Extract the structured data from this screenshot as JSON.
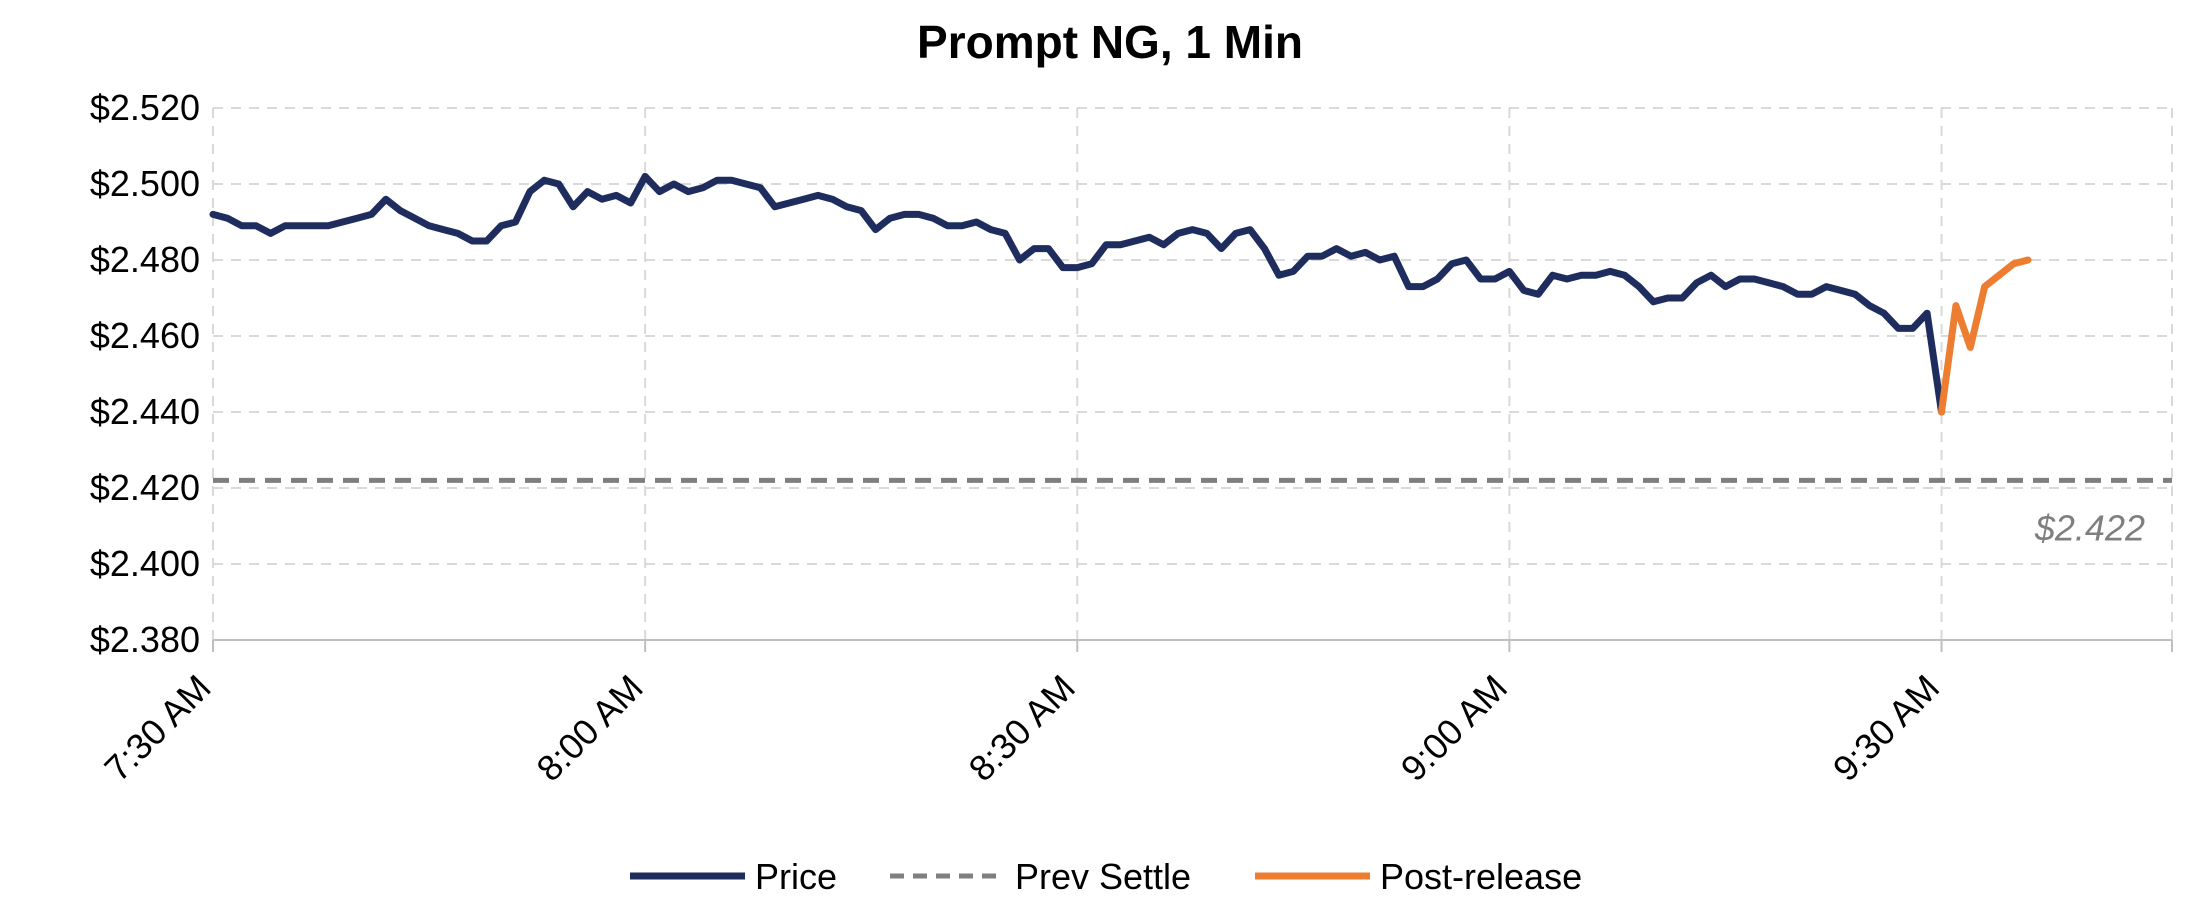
{
  "chart_data": {
    "type": "line",
    "title": "Prompt NG, 1 Min",
    "xlabel": "",
    "ylabel": "",
    "ylim": [
      2.38,
      2.52
    ],
    "y_ticks": [
      "$2.380",
      "$2.400",
      "$2.420",
      "$2.440",
      "$2.460",
      "$2.480",
      "$2.500",
      "$2.520"
    ],
    "y_tick_values": [
      2.38,
      2.4,
      2.42,
      2.44,
      2.46,
      2.48,
      2.5,
      2.52
    ],
    "x_ticks": [
      "7:30 AM",
      "8:00 AM",
      "8:30 AM",
      "9:00 AM",
      "9:30 AM"
    ],
    "x_range_minutes": [
      0,
      136
    ],
    "grid": true,
    "legend_placement": "bottom",
    "series": [
      {
        "name": "Price",
        "color": "#1f2d5e",
        "x": [
          0,
          1,
          2,
          3,
          4,
          5,
          6,
          7,
          8,
          9,
          10,
          11,
          12,
          13,
          14,
          15,
          16,
          17,
          18,
          19,
          20,
          21,
          22,
          23,
          24,
          25,
          26,
          27,
          28,
          29,
          30,
          31,
          32,
          33,
          34,
          35,
          36,
          37,
          38,
          39,
          40,
          41,
          42,
          43,
          44,
          45,
          46,
          47,
          48,
          49,
          50,
          51,
          52,
          53,
          54,
          55,
          56,
          57,
          58,
          59,
          60,
          61,
          62,
          63,
          64,
          65,
          66,
          67,
          68,
          69,
          70,
          71,
          72,
          73,
          74,
          75,
          76,
          77,
          78,
          79,
          80,
          81,
          82,
          83,
          84,
          85,
          86,
          87,
          88,
          89,
          90,
          91,
          92,
          93,
          94,
          95,
          96,
          97,
          98,
          99,
          100,
          101,
          102,
          103,
          104,
          105,
          106,
          107,
          108,
          109,
          110,
          111,
          112,
          113,
          114,
          115,
          116,
          117,
          118,
          119,
          120
        ],
        "values": [
          2.492,
          2.491,
          2.489,
          2.489,
          2.487,
          2.489,
          2.489,
          2.489,
          2.489,
          2.49,
          2.491,
          2.492,
          2.496,
          2.493,
          2.491,
          2.489,
          2.488,
          2.487,
          2.485,
          2.485,
          2.489,
          2.49,
          2.498,
          2.501,
          2.5,
          2.494,
          2.498,
          2.496,
          2.497,
          2.495,
          2.502,
          2.498,
          2.5,
          2.498,
          2.499,
          2.501,
          2.501,
          2.5,
          2.499,
          2.494,
          2.495,
          2.496,
          2.497,
          2.496,
          2.494,
          2.493,
          2.488,
          2.491,
          2.492,
          2.492,
          2.491,
          2.489,
          2.489,
          2.49,
          2.488,
          2.487,
          2.48,
          2.483,
          2.483,
          2.478,
          2.478,
          2.479,
          2.484,
          2.484,
          2.485,
          2.486,
          2.484,
          2.487,
          2.488,
          2.487,
          2.483,
          2.487,
          2.488,
          2.483,
          2.476,
          2.477,
          2.481,
          2.481,
          2.483,
          2.481,
          2.482,
          2.48,
          2.481,
          2.473,
          2.473,
          2.475,
          2.479,
          2.48,
          2.475,
          2.475,
          2.477,
          2.472,
          2.471,
          2.476,
          2.475,
          2.476,
          2.476,
          2.477,
          2.476,
          2.473,
          2.469,
          2.47,
          2.47,
          2.474,
          2.476,
          2.473,
          2.475,
          2.475,
          2.474,
          2.473,
          2.471,
          2.471,
          2.473,
          2.472,
          2.471,
          2.468,
          2.466,
          2.462,
          2.462,
          2.466,
          2.44
        ]
      },
      {
        "name": "Prev Settle",
        "color": "#7f7f7f",
        "style": "dashed",
        "x": [
          0,
          136
        ],
        "values": [
          2.422,
          2.422
        ]
      },
      {
        "name": "Post-release",
        "color": "#ed7d31",
        "x": [
          120,
          121,
          122,
          123,
          124,
          125,
          126
        ],
        "values": [
          2.44,
          2.468,
          2.457,
          2.473,
          2.476,
          2.479,
          2.48
        ]
      }
    ],
    "annotations": [
      {
        "text": "$2.422"
      }
    ]
  }
}
